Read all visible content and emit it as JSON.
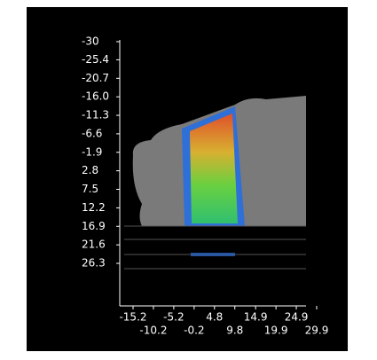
{
  "chart_data": {
    "type": "image",
    "xlim": [
      -15.2,
      29.9
    ],
    "ylim": [
      -30,
      26.3
    ],
    "xticks": [
      -15.2,
      -10.2,
      -5.2,
      -0.2,
      4.8,
      9.8,
      14.9,
      19.9,
      24.9,
      29.9
    ],
    "yticks": [
      -30,
      -25.4,
      -20.7,
      {
        "value": -16.0,
        "label": "-16.0"
      },
      -11.3,
      -6.6,
      -1.9,
      2.8,
      7.5,
      12.2,
      16.9,
      21.6,
      26.3
    ]
  }
}
